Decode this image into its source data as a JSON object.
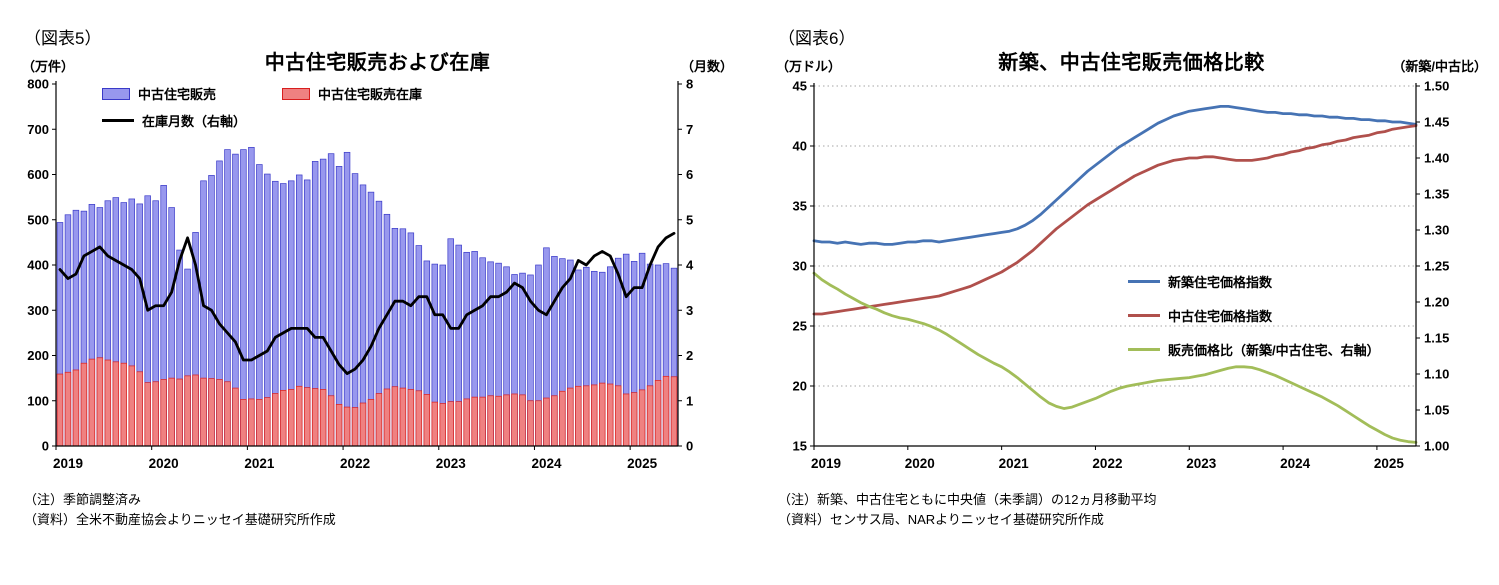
{
  "figure5": {
    "fig_label": "（図表5）",
    "title": "中古住宅販売および在庫",
    "unit_left": "（万件）",
    "unit_right": "（月数）",
    "notes": [
      "（注）季節調整済み",
      "（資料）全米不動産協会よりニッセイ基礎研究所作成"
    ]
  },
  "figure6": {
    "fig_label": "（図表6）",
    "title": "新築、中古住宅販売価格比較",
    "unit_left": "（万ドル）",
    "unit_right": "（新築/中古比）",
    "notes": [
      "（注）新築、中古住宅ともに中央値（未季調）の12ヵ月移動平均",
      "（資料）センサス局、NARよりニッセイ基礎研究所作成"
    ]
  },
  "chart_data": [
    {
      "id": "existing-home-sales-and-inventory",
      "type": "bar",
      "title": "中古住宅販売および在庫",
      "x_frequency": "monthly",
      "x_start": "2019-01",
      "x_end": "2025-06",
      "x_year_labels": [
        "2019",
        "2020",
        "2021",
        "2022",
        "2023",
        "2024",
        "2025"
      ],
      "ylabel_left": "（万件）",
      "ylabel_right": "（月数）",
      "ylim_left": [
        0,
        800
      ],
      "ytick_left": 100,
      "ylim_right": [
        0,
        8
      ],
      "ytick_right": 1,
      "grid": "off",
      "legend_position": "top-left-inside",
      "series": [
        {
          "name": "中古住宅販売",
          "type": "bar",
          "axis": "left",
          "fill": "#9898ee",
          "stroke": "#3a3ac8",
          "values": [
            494,
            511,
            521,
            519,
            534,
            527,
            542,
            549,
            538,
            546,
            535,
            553,
            542,
            576,
            527,
            433,
            391,
            472,
            586,
            598,
            630,
            655,
            645,
            655,
            660,
            622,
            601,
            585,
            580,
            586,
            599,
            588,
            629,
            634,
            646,
            618,
            649,
            602,
            577,
            561,
            541,
            512,
            481,
            480,
            471,
            443,
            409,
            402,
            400,
            458,
            444,
            428,
            430,
            416,
            407,
            404,
            396,
            379,
            382,
            378,
            400,
            438,
            419,
            414,
            411,
            389,
            395,
            386,
            384,
            396,
            415,
            424,
            408,
            426,
            402,
            400,
            403,
            393
          ]
        },
        {
          "name": "中古住宅販売在庫",
          "type": "bar",
          "axis": "left",
          "fill": "#ef8181",
          "stroke": "#d81e1e",
          "values": [
            159,
            163,
            168,
            183,
            192,
            195,
            190,
            186,
            183,
            177,
            164,
            140,
            142,
            147,
            150,
            148,
            155,
            157,
            150,
            149,
            147,
            142,
            128,
            103,
            104,
            103,
            107,
            116,
            123,
            125,
            132,
            129,
            127,
            125,
            111,
            92,
            86,
            85,
            95,
            103,
            116,
            126,
            131,
            128,
            125,
            122,
            114,
            97,
            94,
            98,
            98,
            104,
            108,
            108,
            111,
            110,
            113,
            115,
            113,
            100,
            100,
            106,
            111,
            121,
            128,
            132,
            133,
            135,
            139,
            137,
            133,
            115,
            118,
            124,
            133,
            145,
            154,
            153
          ]
        },
        {
          "name": "在庫月数（右軸）",
          "type": "line",
          "axis": "right",
          "color": "#000000",
          "values": [
            3.9,
            3.7,
            3.8,
            4.2,
            4.3,
            4.4,
            4.2,
            4.1,
            4.0,
            3.9,
            3.7,
            3.0,
            3.1,
            3.1,
            3.4,
            4.1,
            4.6,
            4.0,
            3.1,
            3.0,
            2.7,
            2.5,
            2.3,
            1.9,
            1.9,
            2.0,
            2.1,
            2.4,
            2.5,
            2.6,
            2.6,
            2.6,
            2.4,
            2.4,
            2.1,
            1.8,
            1.6,
            1.7,
            1.9,
            2.2,
            2.6,
            2.9,
            3.2,
            3.2,
            3.1,
            3.3,
            3.3,
            2.9,
            2.9,
            2.6,
            2.6,
            2.9,
            3.0,
            3.1,
            3.3,
            3.3,
            3.4,
            3.6,
            3.5,
            3.2,
            3.0,
            2.9,
            3.2,
            3.5,
            3.7,
            4.1,
            4.0,
            4.2,
            4.3,
            4.2,
            3.8,
            3.3,
            3.5,
            3.5,
            4.0,
            4.4,
            4.6,
            4.7
          ]
        }
      ]
    },
    {
      "id": "new-vs-existing-home-price-comparison",
      "type": "line",
      "title": "新築、中古住宅販売価格比較",
      "x_frequency": "monthly",
      "x_start": "2019-01",
      "x_end": "2025-06",
      "x_year_labels": [
        "2019",
        "2020",
        "2021",
        "2022",
        "2023",
        "2024",
        "2025"
      ],
      "ylabel_left": "（万ドル）",
      "ylabel_right": "（新築/中古比）",
      "ylim_left": [
        15,
        45
      ],
      "ytick_left": 5,
      "ylim_right": [
        1.0,
        1.5
      ],
      "ytick_right": 0.05,
      "grid": "dotted-horizontal",
      "legend_position": "middle-right-inside",
      "series": [
        {
          "name": "新築住宅価格指数",
          "type": "line",
          "axis": "left",
          "color": "#4673b4",
          "values": [
            32.1,
            32.0,
            32.0,
            31.9,
            32.0,
            31.9,
            31.8,
            31.9,
            31.9,
            31.8,
            31.8,
            31.9,
            32.0,
            32.0,
            32.1,
            32.1,
            32.0,
            32.1,
            32.2,
            32.3,
            32.4,
            32.5,
            32.6,
            32.7,
            32.8,
            32.9,
            33.1,
            33.4,
            33.8,
            34.3,
            34.9,
            35.5,
            36.1,
            36.7,
            37.3,
            37.9,
            38.4,
            38.9,
            39.4,
            39.9,
            40.3,
            40.7,
            41.1,
            41.5,
            41.9,
            42.2,
            42.5,
            42.7,
            42.9,
            43.0,
            43.1,
            43.2,
            43.3,
            43.3,
            43.2,
            43.1,
            43.0,
            42.9,
            42.8,
            42.8,
            42.7,
            42.7,
            42.6,
            42.6,
            42.5,
            42.5,
            42.4,
            42.4,
            42.3,
            42.3,
            42.2,
            42.2,
            42.1,
            42.1,
            42.0,
            42.0,
            41.9,
            41.8
          ]
        },
        {
          "name": "中古住宅価格指数",
          "type": "line",
          "axis": "left",
          "color": "#b0504c",
          "values": [
            26.0,
            26.0,
            26.1,
            26.2,
            26.3,
            26.4,
            26.5,
            26.6,
            26.7,
            26.8,
            26.9,
            27.0,
            27.1,
            27.2,
            27.3,
            27.4,
            27.5,
            27.7,
            27.9,
            28.1,
            28.3,
            28.6,
            28.9,
            29.2,
            29.5,
            29.9,
            30.3,
            30.8,
            31.3,
            31.9,
            32.5,
            33.1,
            33.6,
            34.1,
            34.6,
            35.1,
            35.5,
            35.9,
            36.3,
            36.7,
            37.1,
            37.5,
            37.8,
            38.1,
            38.4,
            38.6,
            38.8,
            38.9,
            39.0,
            39.0,
            39.1,
            39.1,
            39.0,
            38.9,
            38.8,
            38.8,
            38.8,
            38.9,
            39.0,
            39.2,
            39.3,
            39.5,
            39.6,
            39.8,
            39.9,
            40.1,
            40.2,
            40.4,
            40.5,
            40.7,
            40.8,
            40.9,
            41.1,
            41.2,
            41.4,
            41.5,
            41.6,
            41.7
          ]
        },
        {
          "name": "販売価格比（新築/中古住宅、右軸）",
          "type": "line",
          "axis": "right",
          "color": "#a2bd59",
          "values": [
            1.24,
            1.231,
            1.224,
            1.218,
            1.211,
            1.205,
            1.199,
            1.194,
            1.19,
            1.185,
            1.181,
            1.178,
            1.176,
            1.173,
            1.17,
            1.166,
            1.161,
            1.155,
            1.148,
            1.141,
            1.134,
            1.127,
            1.121,
            1.115,
            1.11,
            1.103,
            1.095,
            1.086,
            1.077,
            1.068,
            1.06,
            1.055,
            1.052,
            1.054,
            1.058,
            1.062,
            1.066,
            1.071,
            1.076,
            1.08,
            1.083,
            1.085,
            1.087,
            1.089,
            1.091,
            1.092,
            1.093,
            1.094,
            1.095,
            1.097,
            1.099,
            1.102,
            1.105,
            1.108,
            1.11,
            1.11,
            1.109,
            1.106,
            1.102,
            1.098,
            1.093,
            1.088,
            1.083,
            1.078,
            1.073,
            1.068,
            1.062,
            1.056,
            1.049,
            1.042,
            1.035,
            1.028,
            1.022,
            1.016,
            1.011,
            1.008,
            1.006,
            1.005
          ]
        }
      ]
    }
  ]
}
